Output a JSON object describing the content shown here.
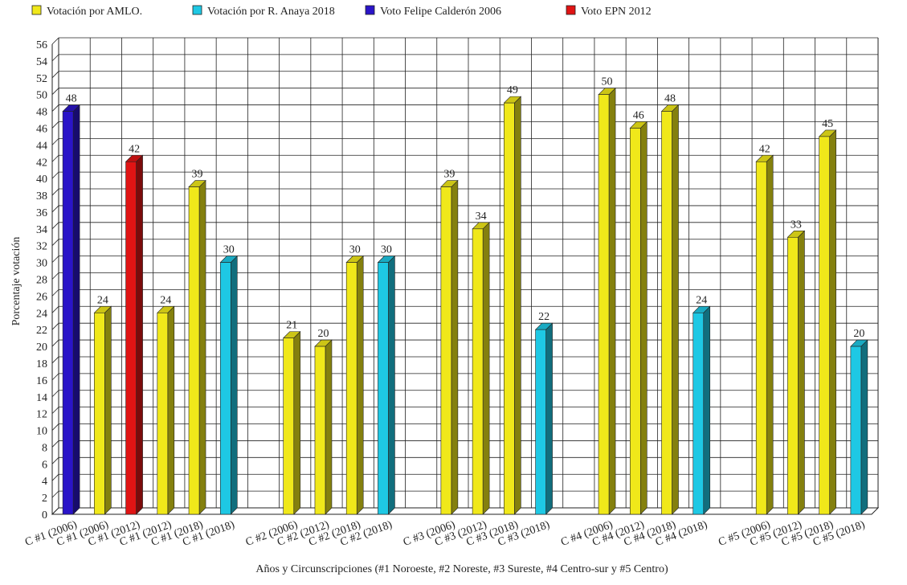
{
  "chart_data": {
    "type": "bar",
    "y_label": "Porcentaje votación",
    "x_label": "Años y Circunscripciones (#1 Noroeste, #2 Noreste, #3 Sureste, #4 Centro-sur y #5 Centro)",
    "categories": [
      "C #1 (2006)",
      "C #1 (2006)",
      "C #1 (2012)",
      "C #1 (2012)",
      "C #1 (2018)",
      "C #1 (2018)",
      null,
      "C #2 (2006)",
      "C #2 (2012)",
      "C #2 (2018)",
      "C #2 (2018)",
      null,
      "C #3 (2006)",
      "C #3 (2012)",
      "C #3 (2018)",
      "C #3 (2018)",
      null,
      "C #4 (2006)",
      "C #4 (2012)",
      "C #4 (2018)",
      "C #4 (2018)",
      null,
      "C #5 (2006)",
      "C #5 (2012)",
      "C #5 (2018)",
      "C #5 (2018)"
    ],
    "series": [
      {
        "name": "Votación por AMLO.",
        "color": "#f0e81a",
        "values": [
          null,
          24,
          null,
          24,
          39,
          null,
          null,
          21,
          20,
          30,
          null,
          null,
          39,
          34,
          49,
          null,
          null,
          50,
          46,
          48,
          null,
          null,
          42,
          33,
          45,
          null
        ]
      },
      {
        "name": "Votación por R. Anaya 2018",
        "color": "#1ec8e4",
        "values": [
          null,
          null,
          null,
          null,
          null,
          30,
          null,
          null,
          null,
          null,
          30,
          null,
          null,
          null,
          null,
          22,
          null,
          null,
          null,
          null,
          24,
          null,
          null,
          null,
          null,
          20
        ]
      },
      {
        "name": "Voto Felipe Calderón 2006",
        "color": "#2a14c8",
        "values": [
          48,
          null,
          null,
          null,
          null,
          null,
          null,
          null,
          null,
          null,
          null,
          null,
          null,
          null,
          null,
          null,
          null,
          null,
          null,
          null,
          null,
          null,
          null,
          null,
          null,
          null
        ]
      },
      {
        "name": "Voto EPN 2012",
        "color": "#e01414",
        "values": [
          null,
          null,
          42,
          null,
          null,
          null,
          null,
          null,
          null,
          null,
          null,
          null,
          null,
          null,
          null,
          null,
          null,
          null,
          null,
          null,
          null,
          null,
          null,
          null,
          null,
          null
        ]
      }
    ],
    "ylim": [
      0,
      56
    ],
    "yticks": [
      0,
      2,
      4,
      6,
      8,
      10,
      12,
      14,
      16,
      18,
      20,
      22,
      24,
      26,
      28,
      30,
      32,
      34,
      36,
      38,
      40,
      42,
      44,
      46,
      48,
      50,
      52,
      54,
      56
    ],
    "grid": true
  }
}
